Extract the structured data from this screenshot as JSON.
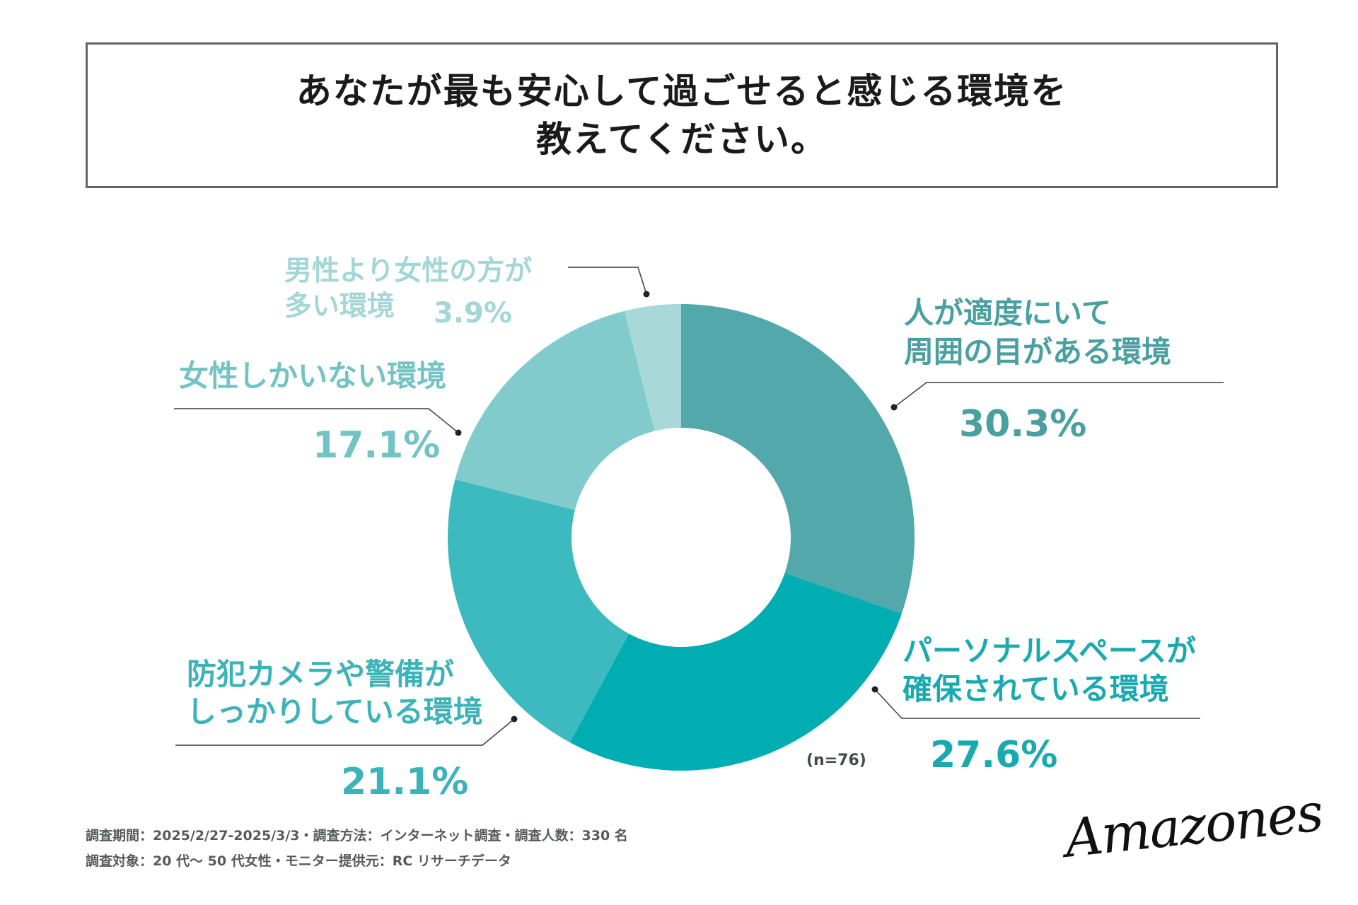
{
  "title": {
    "line1": "あなたが最も安心して過ごせると感じる環境を",
    "line2": "教えてください。"
  },
  "chart_data": {
    "type": "pie",
    "donut": true,
    "title": "あなたが最も安心して過ごせると感じる環境を教えてください。",
    "n_label": "(n=76)",
    "slices": [
      {
        "line1": "人が適度にいて",
        "line2": "周囲の目がある環境",
        "value": 30.3,
        "pct": "30.3%",
        "color": "#52a8aa",
        "label_color": "#4a9fa1"
      },
      {
        "line1": "パーソナルスペースが",
        "line2": "確保されている環境",
        "value": 27.6,
        "pct": "27.6%",
        "color": "#00adb3",
        "label_color": "#19aab0"
      },
      {
        "line1": "防犯カメラや警備が",
        "line2": "しっかりしている環境",
        "value": 21.1,
        "pct": "21.1%",
        "color": "#3dbac0",
        "label_color": "#3cb3b8"
      },
      {
        "line1": "女性しかいない環境",
        "line2": "",
        "value": 17.1,
        "pct": "17.1%",
        "color": "#82cbcc",
        "label_color": "#74c3c4"
      },
      {
        "line1": "男性より女性の方が",
        "line2": "多い環境",
        "value": 3.9,
        "pct": "3.9%",
        "color": "#a9d8d9",
        "label_color": "#a3d6d7"
      }
    ]
  },
  "footer": {
    "line1": "調査期間：2025/2/27-2025/3/3・調査方法：インターネット調査・調査人数：330 名",
    "line2": "調査対象：20 代〜 50 代女性・モニター提供元：RC リサーチデータ"
  },
  "logo": {
    "text": "Amazones"
  }
}
